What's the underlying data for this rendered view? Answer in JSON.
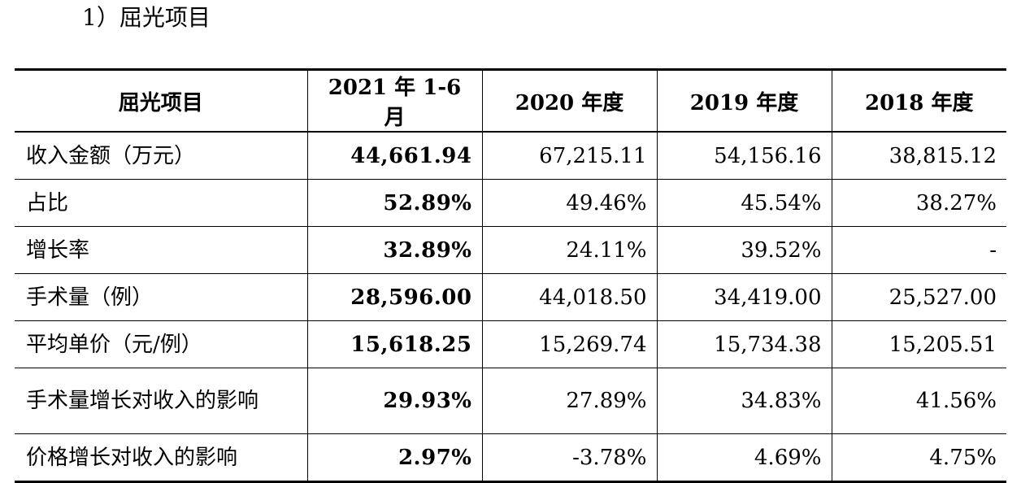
{
  "section": {
    "heading": "1）屈光项目"
  },
  "table": {
    "headers": [
      "屈光项目",
      "2021 年 1-6 月",
      "2020 年度",
      "2019 年度",
      "2018 年度"
    ],
    "rows": [
      {
        "label": "收入金额（万元）",
        "cells": [
          "44,661.94",
          "67,215.11",
          "54,156.16",
          "38,815.12"
        ]
      },
      {
        "label": "占比",
        "cells": [
          "52.89%",
          "49.46%",
          "45.54%",
          "38.27%"
        ]
      },
      {
        "label": "增长率",
        "cells": [
          "32.89%",
          "24.11%",
          "39.52%",
          "-"
        ]
      },
      {
        "label": "手术量（例）",
        "cells": [
          "28,596.00",
          "44,018.50",
          "34,419.00",
          "25,527.00"
        ]
      },
      {
        "label": "平均单价（元/例）",
        "cells": [
          "15,618.25",
          "15,269.74",
          "15,734.38",
          "15,205.51"
        ]
      },
      {
        "label": "手术量增长对收入的影响",
        "cells": [
          "29.93%",
          "27.89%",
          "34.83%",
          "41.56%"
        ]
      },
      {
        "label": "价格增长对收入的影响",
        "cells": [
          "2.97%",
          "-3.78%",
          "4.69%",
          "4.75%"
        ]
      }
    ]
  }
}
